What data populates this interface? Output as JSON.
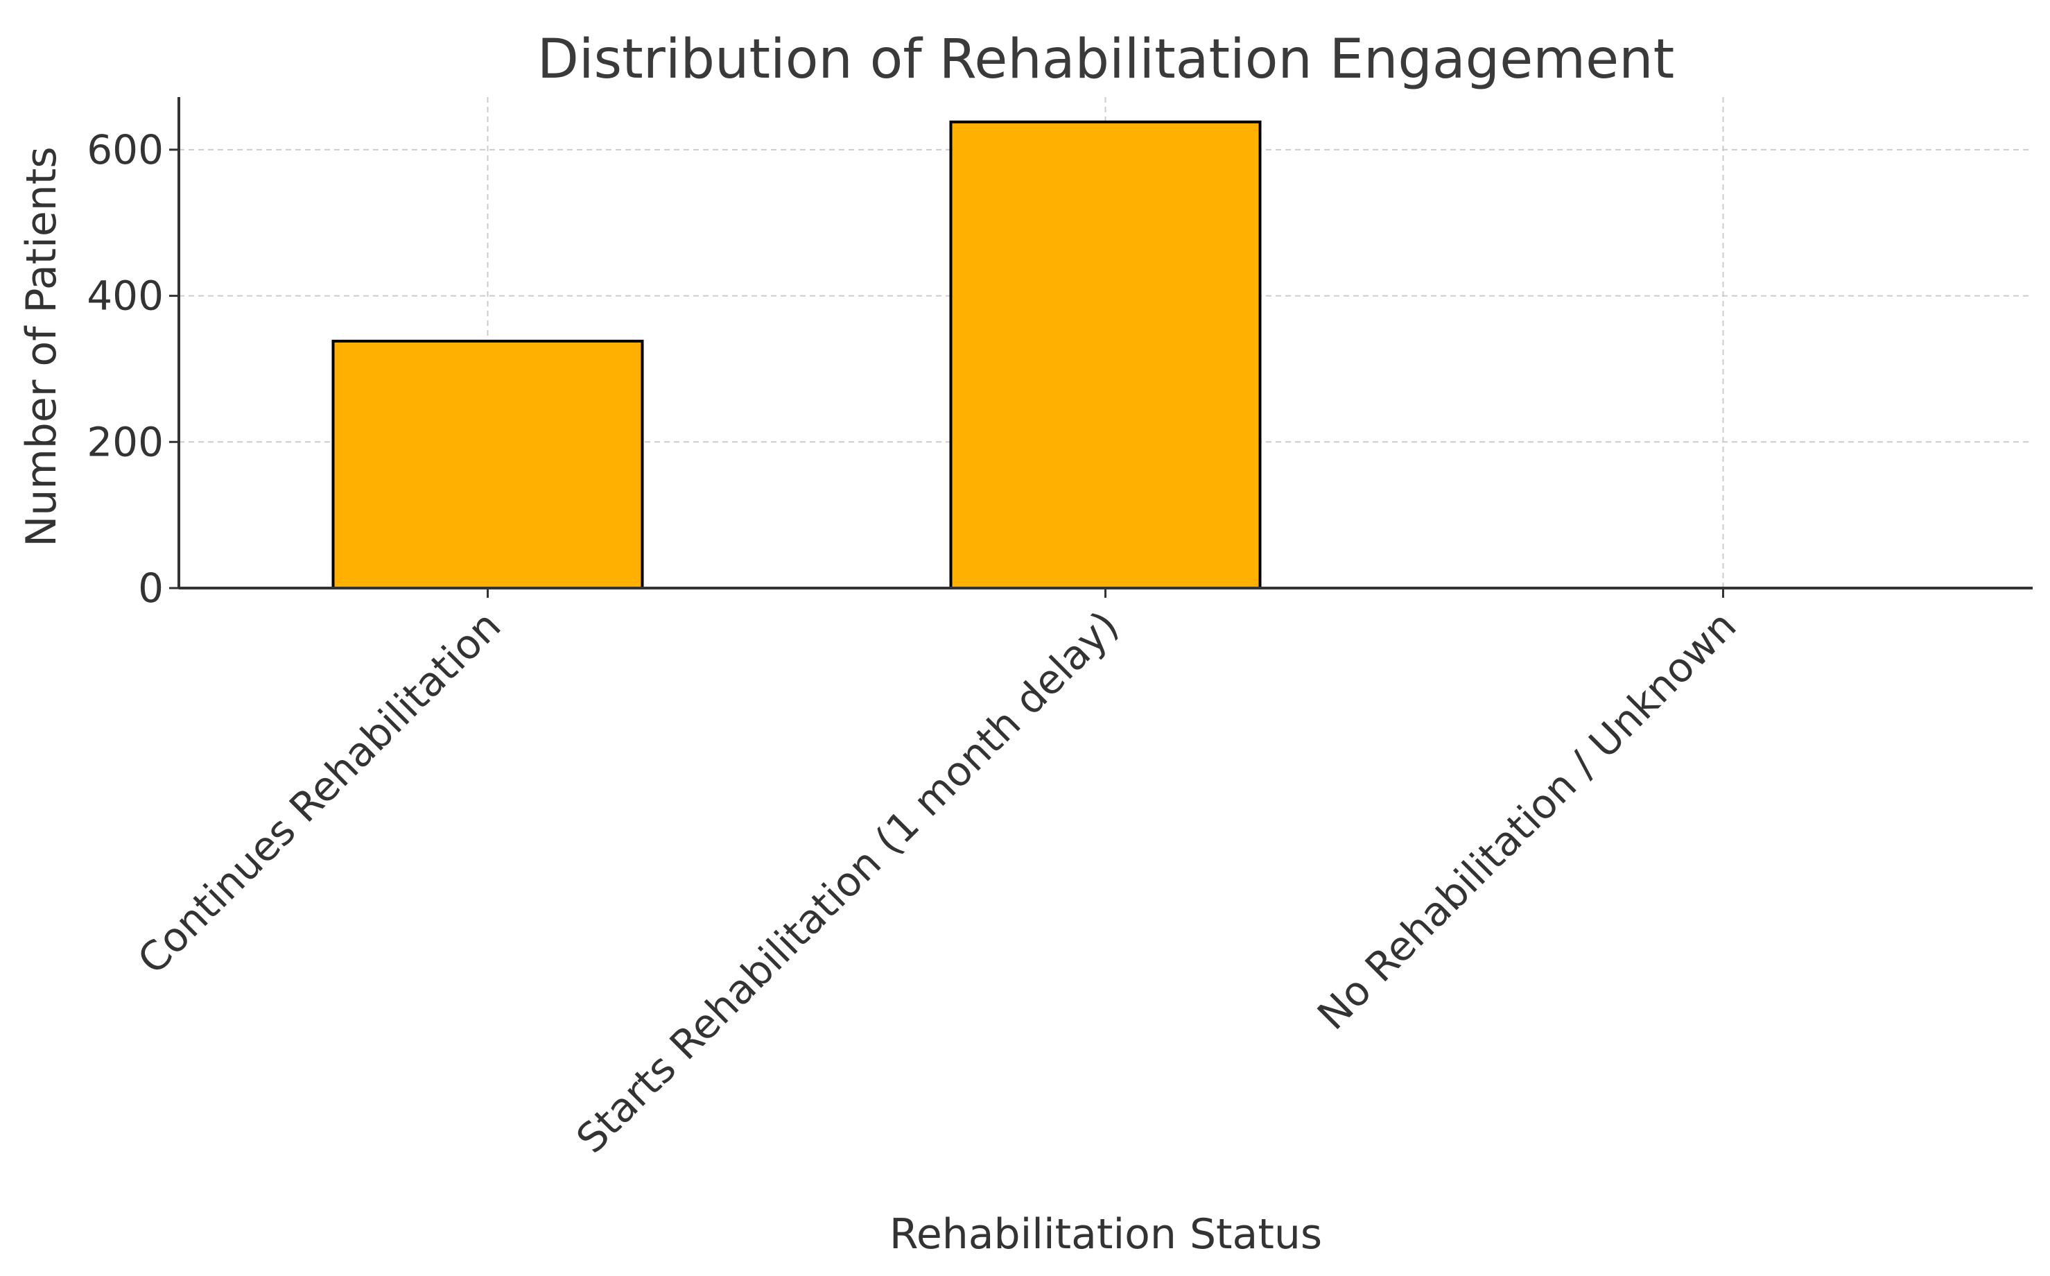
{
  "chart_data": {
    "type": "bar",
    "title": "Distribution of Rehabilitation Engagement",
    "xlabel": "Rehabilitation Status",
    "ylabel": "Number of Patients",
    "categories": [
      "Continues Rehabilitation",
      "Starts Rehabilitation (1 month delay)",
      "No Rehabilitation / Unknown"
    ],
    "values": [
      338,
      638,
      0
    ],
    "ylim": [
      0,
      672
    ],
    "yticks": [
      0,
      200,
      400,
      600
    ],
    "ytick_labels": [
      "0",
      "200",
      "400",
      "600"
    ],
    "grid": true,
    "legend": "none",
    "colors": {
      "bar_fill": "#FFB000",
      "bar_edge": "#000000",
      "grid": "#cccccc",
      "axis": "#333333",
      "text": "#333333"
    }
  }
}
